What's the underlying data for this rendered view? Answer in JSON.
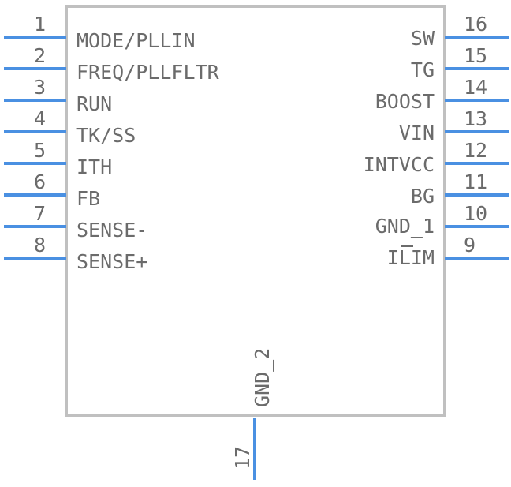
{
  "component": {
    "body_color": "#c0c0c0",
    "pin_color": "#4a90e2",
    "text_color": "#6b6b6b",
    "left_pins": [
      {
        "number": "1",
        "name": "MODE/PLLIN"
      },
      {
        "number": "2",
        "name": "FREQ/PLLFLTR"
      },
      {
        "number": "3",
        "name": "RUN"
      },
      {
        "number": "4",
        "name": "TK/SS"
      },
      {
        "number": "5",
        "name": "ITH"
      },
      {
        "number": "6",
        "name": "FB"
      },
      {
        "number": "7",
        "name": "SENSE-"
      },
      {
        "number": "8",
        "name": "SENSE+"
      }
    ],
    "right_pins": [
      {
        "number": "16",
        "name": "SW"
      },
      {
        "number": "15",
        "name": "TG"
      },
      {
        "number": "14",
        "name": "BOOST"
      },
      {
        "number": "13",
        "name": "VIN"
      },
      {
        "number": "12",
        "name": "INTVCC"
      },
      {
        "number": "11",
        "name": "BG"
      },
      {
        "number": "10",
        "name": "GND_1"
      },
      {
        "number": "9",
        "name": "ILIM"
      }
    ],
    "bottom_pins": [
      {
        "number": "17",
        "name": "GND_2"
      }
    ]
  }
}
